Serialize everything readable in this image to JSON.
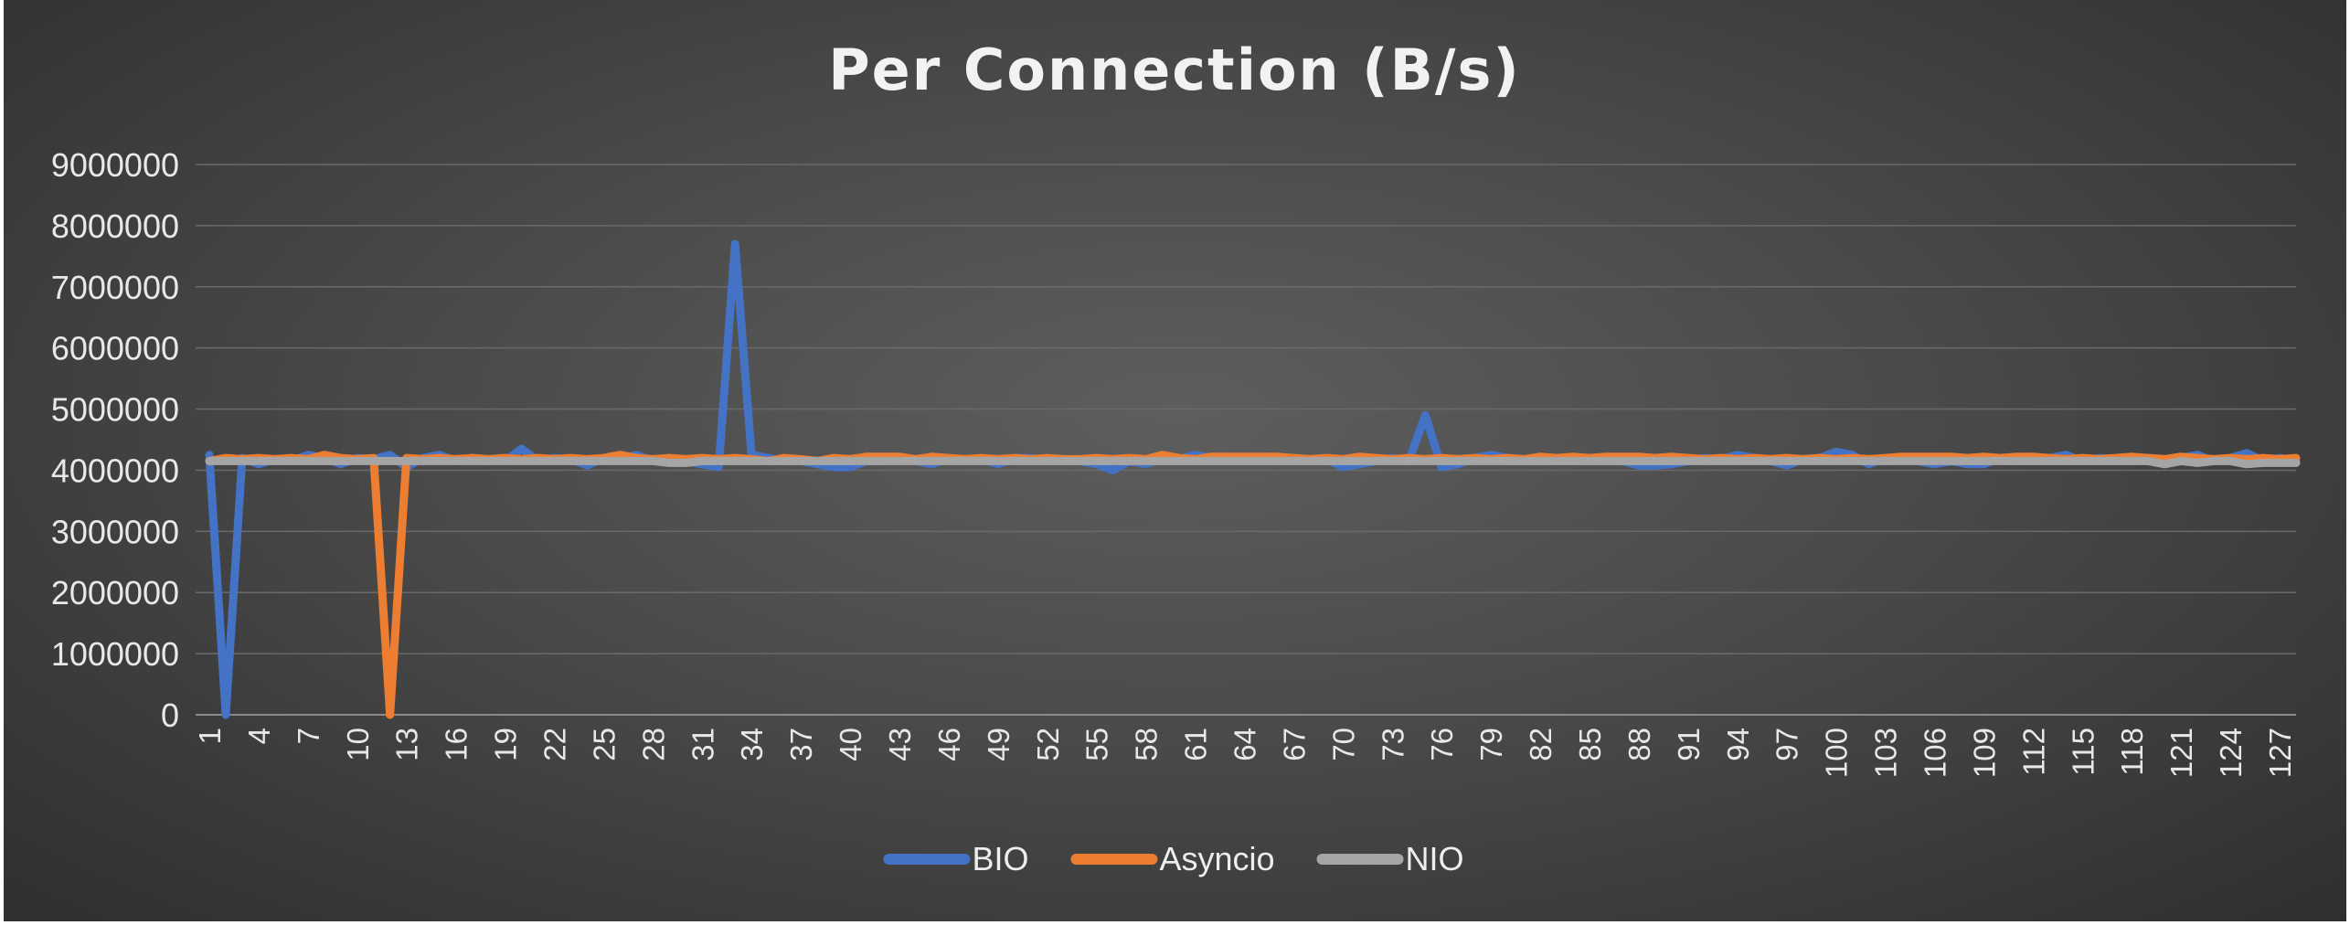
{
  "chart_data": {
    "type": "line",
    "title": "Per Connection (B/s)",
    "xlabel": "",
    "ylabel": "",
    "ylim": [
      0,
      9000000
    ],
    "yticks": [
      0,
      1000000,
      2000000,
      3000000,
      4000000,
      5000000,
      6000000,
      7000000,
      8000000,
      9000000
    ],
    "ytick_labels": [
      "0",
      "1000000",
      "2000000",
      "3000000",
      "4000000",
      "5000000",
      "6000000",
      "7000000",
      "8000000",
      "9000000"
    ],
    "x": [
      1,
      2,
      3,
      4,
      5,
      6,
      7,
      8,
      9,
      10,
      11,
      12,
      13,
      14,
      15,
      16,
      17,
      18,
      19,
      20,
      21,
      22,
      23,
      24,
      25,
      26,
      27,
      28,
      29,
      30,
      31,
      32,
      33,
      34,
      35,
      36,
      37,
      38,
      39,
      40,
      41,
      42,
      43,
      44,
      45,
      46,
      47,
      48,
      49,
      50,
      51,
      52,
      53,
      54,
      55,
      56,
      57,
      58,
      59,
      60,
      61,
      62,
      63,
      64,
      65,
      66,
      67,
      68,
      69,
      70,
      71,
      72,
      73,
      74,
      75,
      76,
      77,
      78,
      79,
      80,
      81,
      82,
      83,
      84,
      85,
      86,
      87,
      88,
      89,
      90,
      91,
      92,
      93,
      94,
      95,
      96,
      97,
      98,
      99,
      100,
      101,
      102,
      103,
      104,
      105,
      106,
      107,
      108,
      109,
      110,
      111,
      112,
      113,
      114,
      115,
      116,
      117,
      118,
      119,
      120,
      121,
      122,
      123,
      124,
      125,
      126,
      127,
      128
    ],
    "xtick_labels": [
      "1",
      "4",
      "7",
      "10",
      "13",
      "16",
      "19",
      "22",
      "25",
      "28",
      "31",
      "34",
      "37",
      "40",
      "43",
      "46",
      "49",
      "52",
      "55",
      "58",
      "61",
      "64",
      "67",
      "70",
      "73",
      "76",
      "79",
      "82",
      "85",
      "88",
      "91",
      "94",
      "97",
      "100",
      "103",
      "106",
      "109",
      "112",
      "115",
      "118",
      "121",
      "124",
      "127"
    ],
    "grid": true,
    "legend": "bottom",
    "series": [
      {
        "name": "BIO",
        "color": "#4472c4",
        "values": [
          4250000,
          0,
          4200000,
          4100000,
          4180000,
          4150000,
          4250000,
          4200000,
          4100000,
          4200000,
          4180000,
          4250000,
          4050000,
          4200000,
          4250000,
          4150000,
          4200000,
          4180000,
          4150000,
          4350000,
          4150000,
          4200000,
          4180000,
          4080000,
          4200000,
          4180000,
          4250000,
          4150000,
          4200000,
          4150000,
          4100000,
          4050000,
          7700000,
          4250000,
          4200000,
          4150000,
          4150000,
          4100000,
          4050000,
          4050000,
          4150000,
          4150000,
          4180000,
          4150000,
          4100000,
          4200000,
          4150000,
          4180000,
          4100000,
          4200000,
          4200000,
          4150000,
          4180000,
          4150000,
          4100000,
          4000000,
          4150000,
          4100000,
          4200000,
          4180000,
          4250000,
          4200000,
          4150000,
          4180000,
          4150000,
          4200000,
          4180000,
          4150000,
          4180000,
          4050000,
          4100000,
          4150000,
          4200000,
          4150000,
          4900000,
          4050000,
          4100000,
          4200000,
          4250000,
          4200000,
          4180000,
          4150000,
          4180000,
          4150000,
          4200000,
          4180000,
          4150000,
          4080000,
          4080000,
          4100000,
          4150000,
          4200000,
          4180000,
          4250000,
          4200000,
          4150000,
          4080000,
          4180000,
          4200000,
          4300000,
          4250000,
          4100000,
          4200000,
          4180000,
          4150000,
          4100000,
          4150000,
          4100000,
          4100000,
          4200000,
          4150000,
          4180000,
          4200000,
          4250000,
          4150000,
          4200000,
          4180000,
          4150000,
          4200000,
          4180000,
          4200000,
          4250000,
          4150000,
          4200000,
          4280000,
          4150000,
          4200000,
          4150000
        ]
      },
      {
        "name": "Asyncio",
        "color": "#ed7d31",
        "values": [
          4150000,
          4200000,
          4180000,
          4200000,
          4180000,
          4200000,
          4180000,
          4250000,
          4200000,
          4180000,
          4200000,
          0,
          4200000,
          4180000,
          4200000,
          4180000,
          4200000,
          4180000,
          4200000,
          4180000,
          4200000,
          4180000,
          4200000,
          4180000,
          4200000,
          4250000,
          4200000,
          4180000,
          4200000,
          4180000,
          4200000,
          4180000,
          4200000,
          4180000,
          4150000,
          4200000,
          4180000,
          4150000,
          4200000,
          4180000,
          4220000,
          4220000,
          4220000,
          4180000,
          4220000,
          4200000,
          4180000,
          4200000,
          4180000,
          4200000,
          4180000,
          4200000,
          4180000,
          4180000,
          4200000,
          4180000,
          4200000,
          4180000,
          4250000,
          4200000,
          4180000,
          4220000,
          4220000,
          4220000,
          4220000,
          4220000,
          4200000,
          4180000,
          4200000,
          4180000,
          4220000,
          4200000,
          4180000,
          4200000,
          4180000,
          4200000,
          4180000,
          4200000,
          4180000,
          4200000,
          4180000,
          4220000,
          4200000,
          4220000,
          4200000,
          4220000,
          4220000,
          4220000,
          4200000,
          4220000,
          4200000,
          4180000,
          4200000,
          4180000,
          4200000,
          4180000,
          4200000,
          4180000,
          4200000,
          4180000,
          4200000,
          4180000,
          4200000,
          4220000,
          4220000,
          4220000,
          4220000,
          4200000,
          4220000,
          4200000,
          4220000,
          4220000,
          4200000,
          4180000,
          4200000,
          4180000,
          4200000,
          4220000,
          4200000,
          4180000,
          4220000,
          4200000,
          4180000,
          4200000,
          4180000,
          4200000,
          4180000,
          4200000
        ]
      },
      {
        "name": "NIO",
        "color": "#a5a5a5",
        "values": [
          4150000,
          4150000,
          4150000,
          4150000,
          4150000,
          4150000,
          4150000,
          4150000,
          4150000,
          4150000,
          4150000,
          4150000,
          4150000,
          4150000,
          4150000,
          4150000,
          4150000,
          4150000,
          4150000,
          4150000,
          4150000,
          4150000,
          4150000,
          4150000,
          4150000,
          4150000,
          4150000,
          4150000,
          4120000,
          4120000,
          4150000,
          4150000,
          4150000,
          4150000,
          4150000,
          4150000,
          4150000,
          4150000,
          4150000,
          4150000,
          4150000,
          4150000,
          4150000,
          4150000,
          4150000,
          4150000,
          4150000,
          4150000,
          4150000,
          4150000,
          4150000,
          4150000,
          4150000,
          4150000,
          4150000,
          4150000,
          4150000,
          4150000,
          4150000,
          4150000,
          4150000,
          4150000,
          4150000,
          4150000,
          4150000,
          4150000,
          4150000,
          4150000,
          4150000,
          4150000,
          4150000,
          4150000,
          4150000,
          4150000,
          4150000,
          4150000,
          4150000,
          4150000,
          4150000,
          4150000,
          4150000,
          4150000,
          4150000,
          4150000,
          4150000,
          4150000,
          4150000,
          4150000,
          4150000,
          4150000,
          4150000,
          4150000,
          4150000,
          4150000,
          4150000,
          4150000,
          4150000,
          4150000,
          4150000,
          4150000,
          4150000,
          4150000,
          4150000,
          4150000,
          4150000,
          4150000,
          4150000,
          4150000,
          4150000,
          4150000,
          4150000,
          4150000,
          4150000,
          4150000,
          4150000,
          4150000,
          4150000,
          4150000,
          4150000,
          4100000,
          4150000,
          4120000,
          4150000,
          4150000,
          4100000,
          4120000,
          4120000,
          4120000
        ]
      }
    ]
  }
}
